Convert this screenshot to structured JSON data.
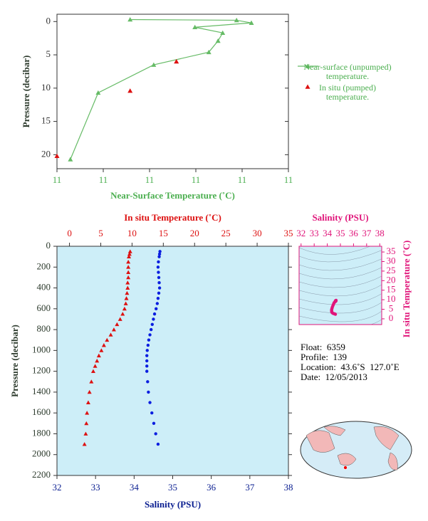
{
  "chart_data": [
    {
      "type": "line",
      "xlabel": "Near-Surface Temperature (˚C)",
      "ylabel": "Pressure (decibar)",
      "xlim": [
        10.9,
        11.4
      ],
      "xticks": [
        {
          "value": 10.9,
          "label": "11"
        },
        {
          "value": 11.0,
          "label": "11"
        },
        {
          "value": 11.1,
          "label": "11"
        },
        {
          "value": 11.2,
          "label": "11"
        },
        {
          "value": 11.3,
          "label": "11"
        },
        {
          "value": 11.4,
          "label": "11"
        }
      ],
      "ylim": [
        22.1,
        -1.1
      ],
      "yticks": [
        0,
        5,
        10,
        15,
        20
      ],
      "series": [
        {
          "name": "Near-surface (unpumped) temperature.",
          "color": "#66bb66",
          "marker": "triangle",
          "line": true,
          "x": [
            11.058,
            11.288,
            11.32,
            11.198,
            11.258,
            11.248,
            11.228,
            11.109,
            10.989,
            10.929
          ],
          "y": [
            -0.3,
            -0.2,
            0.2,
            0.85,
            1.7,
            2.9,
            4.6,
            6.5,
            10.7,
            20.7
          ]
        },
        {
          "name": "In situ (pumped) temperature.",
          "color": "#dd1111",
          "marker": "triangle",
          "line": false,
          "x": [
            11.158,
            11.058,
            10.9
          ],
          "y": [
            6.0,
            10.4,
            20.2
          ]
        }
      ]
    },
    {
      "type": "profile",
      "xlabel": "Salinity (PSU)",
      "x2label": "In situ Temperature (˚C)",
      "ylabel": "Pressure (decibar)",
      "xlim": [
        32,
        38
      ],
      "xticks": [
        32,
        33,
        34,
        35,
        36,
        37,
        38
      ],
      "x2lim": [
        -2,
        35
      ],
      "x2ticks": [
        0,
        5,
        10,
        15,
        20,
        25,
        30,
        35
      ],
      "ylim": [
        2200,
        0
      ],
      "yticks": [
        0,
        200,
        400,
        600,
        800,
        1000,
        1200,
        1400,
        1600,
        1800,
        2000,
        2200
      ],
      "background": "#cdeef8",
      "pressure": [
        50,
        75,
        100,
        150,
        200,
        250,
        300,
        350,
        400,
        450,
        500,
        550,
        600,
        650,
        700,
        750,
        800,
        850,
        900,
        950,
        1000,
        1050,
        1100,
        1150,
        1200,
        1300,
        1400,
        1500,
        1600,
        1700,
        1800,
        1900
      ],
      "series": [
        {
          "color": "#dd1111",
          "marker": "triangle",
          "axis": "x2",
          "values": [
            9.7,
            9.6,
            9.5,
            9.4,
            9.4,
            9.4,
            9.4,
            9.3,
            9.3,
            9.2,
            9.1,
            9.0,
            8.8,
            8.5,
            8.1,
            7.6,
            7.1,
            6.6,
            6.0,
            5.5,
            5.1,
            4.7,
            4.4,
            4.1,
            3.8,
            3.5,
            3.2,
            3.0,
            2.8,
            2.7,
            2.6,
            2.4
          ]
        },
        {
          "color": "#0a1ee0",
          "marker": "dot",
          "axis": "x",
          "values": [
            34.67,
            34.66,
            34.65,
            34.63,
            34.62,
            34.63,
            34.64,
            34.65,
            34.66,
            34.64,
            34.62,
            34.6,
            34.57,
            34.53,
            34.5,
            34.47,
            34.44,
            34.41,
            34.38,
            34.36,
            34.34,
            34.33,
            34.33,
            34.33,
            34.33,
            34.35,
            34.37,
            34.41,
            34.46,
            34.51,
            34.56,
            34.62
          ]
        }
      ]
    },
    {
      "type": "ts",
      "xlabel": "Salinity (PSU)",
      "ylabel": "In situ Temperature (˚C)",
      "xlim": [
        31.85,
        38.15
      ],
      "xticks": [
        32,
        33,
        34,
        35,
        36,
        37,
        38
      ],
      "ylim": [
        -3,
        38
      ],
      "yticks": [
        0,
        5,
        10,
        15,
        20,
        25,
        30,
        35
      ],
      "color": "#e0157a"
    }
  ],
  "info": [
    "Float:  6359",
    "Profile:  139",
    "Location:  43.6˚S  127.0˚E",
    "Date:  12/05/2013"
  ]
}
